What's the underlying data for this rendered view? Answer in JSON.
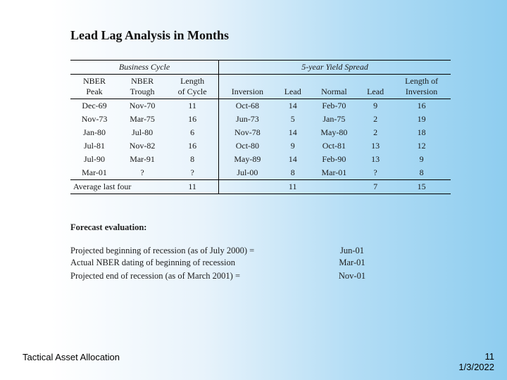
{
  "title": "Lead Lag Analysis in Months",
  "group_headers": {
    "left": "Business Cycle",
    "right": "5-year Yield Spread"
  },
  "columns": {
    "c1a": "NBER",
    "c1b": "Peak",
    "c2a": "NBER",
    "c2b": "Trough",
    "c3a": "Length",
    "c3b": "of Cycle",
    "c4": "Inversion",
    "c5": "Lead",
    "c6": "Normal",
    "c7": "Lead",
    "c8a": "Length of",
    "c8b": "Inversion"
  },
  "rows": [
    {
      "peak": "Dec-69",
      "trough": "Nov-70",
      "len": "11",
      "inv": "Oct-68",
      "lead1": "14",
      "norm": "Feb-70",
      "lead2": "9",
      "invlen": "16"
    },
    {
      "peak": "Nov-73",
      "trough": "Mar-75",
      "len": "16",
      "inv": "Jun-73",
      "lead1": "5",
      "norm": "Jan-75",
      "lead2": "2",
      "invlen": "19"
    },
    {
      "peak": "Jan-80",
      "trough": "Jul-80",
      "len": "6",
      "inv": "Nov-78",
      "lead1": "14",
      "norm": "May-80",
      "lead2": "2",
      "invlen": "18"
    },
    {
      "peak": "Jul-81",
      "trough": "Nov-82",
      "len": "16",
      "inv": "Oct-80",
      "lead1": "9",
      "norm": "Oct-81",
      "lead2": "13",
      "invlen": "12"
    },
    {
      "peak": "Jul-90",
      "trough": "Mar-91",
      "len": "8",
      "inv": "May-89",
      "lead1": "14",
      "norm": "Feb-90",
      "lead2": "13",
      "invlen": "9"
    },
    {
      "peak": "Mar-01",
      "trough": "?",
      "len": "?",
      "inv": "Jul-00",
      "lead1": "8",
      "norm": "Mar-01",
      "lead2": "?",
      "invlen": "8"
    }
  ],
  "summary": {
    "label": "Average last four",
    "len": "11",
    "lead1": "11",
    "lead2": "7",
    "invlen": "15"
  },
  "forecast": {
    "heading": "Forecast evaluation:",
    "lines": [
      {
        "label": "Projected beginning of recession (as of July 2000) =",
        "value": "Jun-01"
      },
      {
        "label": "Actual NBER dating of beginning of recession",
        "value": "Mar-01"
      },
      {
        "label": "",
        "value": ""
      },
      {
        "label": "Projected end of recession (as of March 2001) =",
        "value": "Nov-01"
      }
    ]
  },
  "footer": {
    "left": "Tactical Asset Allocation",
    "page": "11",
    "date": "1/3/2022"
  }
}
